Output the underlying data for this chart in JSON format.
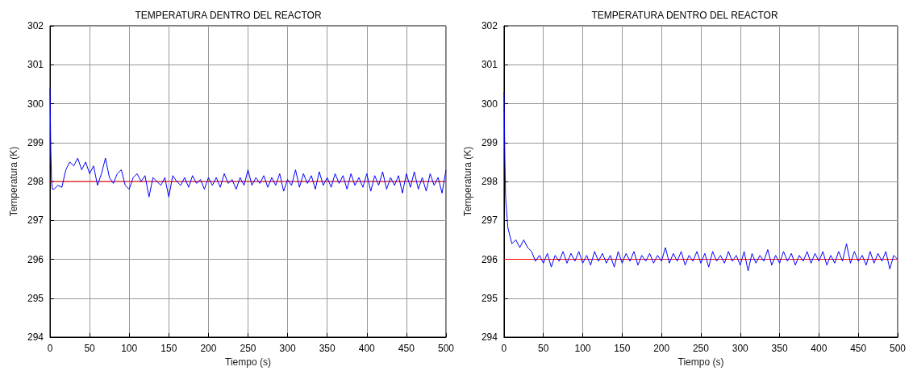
{
  "chart_data": [
    {
      "type": "line",
      "title": "TEMPERATURA DENTRO DEL REACTOR",
      "xlabel": "Tiempo (s)",
      "ylabel": "Temperatura (K)",
      "x": [
        0,
        1,
        2,
        3,
        5,
        10,
        15,
        20,
        25,
        30,
        35,
        40,
        45,
        50,
        55,
        60,
        65,
        70,
        75,
        80,
        85,
        90,
        95,
        100,
        105,
        110,
        115,
        120,
        125,
        130,
        135,
        140,
        145,
        150,
        155,
        160,
        165,
        170,
        175,
        180,
        185,
        190,
        195,
        200,
        205,
        210,
        215,
        220,
        225,
        230,
        235,
        240,
        245,
        250,
        255,
        260,
        265,
        270,
        275,
        280,
        285,
        290,
        295,
        300,
        305,
        310,
        315,
        320,
        325,
        330,
        335,
        340,
        345,
        350,
        355,
        360,
        365,
        370,
        375,
        380,
        385,
        390,
        395,
        400,
        405,
        410,
        415,
        420,
        425,
        430,
        435,
        440,
        445,
        450,
        455,
        460,
        465,
        470,
        475,
        480,
        485,
        490,
        495,
        500
      ],
      "series": [
        {
          "color": "#0000ff",
          "values": [
            300.4,
            298.8,
            298.0,
            297.8,
            297.8,
            297.9,
            297.85,
            298.3,
            298.5,
            298.4,
            298.6,
            298.3,
            298.5,
            298.2,
            298.4,
            297.9,
            298.2,
            298.6,
            298.1,
            297.95,
            298.2,
            298.3,
            297.9,
            297.8,
            298.1,
            298.2,
            298.0,
            298.15,
            297.6,
            298.1,
            298.0,
            297.9,
            298.1,
            297.6,
            298.15,
            298.0,
            297.9,
            298.1,
            297.85,
            298.15,
            297.95,
            298.05,
            297.8,
            298.1,
            297.9,
            298.1,
            297.85,
            298.2,
            297.95,
            298.05,
            297.8,
            298.1,
            297.9,
            298.3,
            297.9,
            298.1,
            297.95,
            298.15,
            297.85,
            298.1,
            297.9,
            298.2,
            297.75,
            298.05,
            297.9,
            298.3,
            297.85,
            298.2,
            297.95,
            298.15,
            297.8,
            298.25,
            297.9,
            298.1,
            297.85,
            298.2,
            297.95,
            298.15,
            297.8,
            298.2,
            297.9,
            298.1,
            297.85,
            298.2,
            297.75,
            298.15,
            297.9,
            298.25,
            297.8,
            298.1,
            297.9,
            298.15,
            297.7,
            298.2,
            297.85,
            298.25,
            297.8,
            298.1,
            297.75,
            298.2,
            297.9,
            298.1,
            297.7,
            298.3
          ]
        }
      ],
      "xlim": [
        0,
        500
      ],
      "xticks": [
        0,
        50,
        100,
        150,
        200,
        250,
        300,
        350,
        400,
        450,
        500
      ],
      "ylim": [
        294,
        302
      ],
      "yticks": [
        294,
        295,
        296,
        297,
        298,
        299,
        300,
        301,
        302
      ],
      "grid": true,
      "ref_lines": [
        {
          "axis": "y",
          "value": 298,
          "color": "#ff0000"
        }
      ]
    },
    {
      "type": "line",
      "title": "TEMPERATURA DENTRO DEL REACTOR",
      "xlabel": "Tiempo (s)",
      "ylabel": "Temperatura (K)",
      "x": [
        0,
        1,
        2,
        3,
        5,
        10,
        15,
        20,
        25,
        30,
        35,
        40,
        45,
        50,
        55,
        60,
        65,
        70,
        75,
        80,
        85,
        90,
        95,
        100,
        105,
        110,
        115,
        120,
        125,
        130,
        135,
        140,
        145,
        150,
        155,
        160,
        165,
        170,
        175,
        180,
        185,
        190,
        195,
        200,
        205,
        210,
        215,
        220,
        225,
        230,
        235,
        240,
        245,
        250,
        255,
        260,
        265,
        270,
        275,
        280,
        285,
        290,
        295,
        300,
        305,
        310,
        315,
        320,
        325,
        330,
        335,
        340,
        345,
        350,
        355,
        360,
        365,
        370,
        375,
        380,
        385,
        390,
        395,
        400,
        405,
        410,
        415,
        420,
        425,
        430,
        435,
        440,
        445,
        450,
        455,
        460,
        465,
        470,
        475,
        480,
        485,
        490,
        495,
        500
      ],
      "series": [
        {
          "color": "#0000ff",
          "values": [
            300.3,
            298.7,
            297.6,
            297.3,
            296.8,
            296.4,
            296.5,
            296.3,
            296.5,
            296.3,
            296.2,
            295.95,
            296.1,
            295.9,
            296.15,
            295.8,
            296.1,
            295.95,
            296.2,
            295.9,
            296.15,
            295.95,
            296.2,
            295.9,
            296.1,
            295.85,
            296.2,
            295.95,
            296.15,
            295.9,
            296.1,
            295.8,
            296.2,
            295.9,
            296.15,
            295.95,
            296.2,
            295.85,
            296.1,
            295.95,
            296.15,
            295.9,
            296.1,
            295.95,
            296.3,
            295.9,
            296.15,
            295.95,
            296.2,
            295.85,
            296.1,
            295.95,
            296.2,
            295.9,
            296.15,
            295.8,
            296.2,
            295.95,
            296.1,
            295.9,
            296.2,
            295.95,
            296.1,
            295.85,
            296.2,
            295.7,
            296.15,
            295.9,
            296.1,
            295.95,
            296.25,
            295.85,
            296.1,
            295.9,
            296.2,
            295.95,
            296.15,
            295.85,
            296.1,
            295.95,
            296.2,
            295.9,
            296.15,
            295.95,
            296.2,
            295.85,
            296.1,
            295.9,
            296.2,
            295.95,
            296.4,
            295.9,
            296.2,
            295.95,
            296.1,
            295.85,
            296.2,
            295.9,
            296.15,
            295.95,
            296.2,
            295.75,
            296.1,
            296.0
          ]
        }
      ],
      "xlim": [
        0,
        500
      ],
      "xticks": [
        0,
        50,
        100,
        150,
        200,
        250,
        300,
        350,
        400,
        450,
        500
      ],
      "ylim": [
        294,
        302
      ],
      "yticks": [
        294,
        295,
        296,
        297,
        298,
        299,
        300,
        301,
        302
      ],
      "grid": true,
      "ref_lines": [
        {
          "axis": "y",
          "value": 296,
          "color": "#ff0000"
        }
      ]
    }
  ]
}
